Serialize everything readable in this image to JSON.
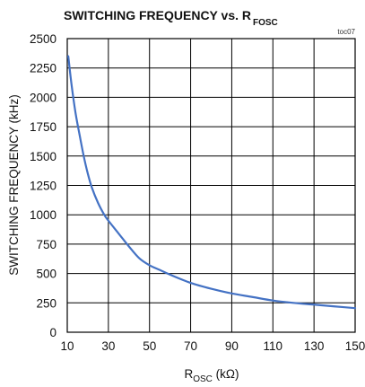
{
  "chart_data": {
    "type": "line",
    "title": {
      "main": "SWITCHING FREQUENCY vs. R",
      "sub": "FOSC"
    },
    "annotation": "toc07",
    "xlabel": {
      "main": "R",
      "sub": "OSC",
      "unit": " (kΩ)"
    },
    "ylabel": "SWITCHING FREQUENCY (kHz)",
    "xlim": [
      10,
      150
    ],
    "ylim": [
      0,
      2500
    ],
    "x_ticks": [
      "10",
      "30",
      "50",
      "70",
      "90",
      "110",
      "130",
      "150"
    ],
    "y_ticks": [
      "0",
      "250",
      "500",
      "750",
      "1000",
      "1250",
      "1500",
      "1750",
      "2000",
      "2250",
      "2500"
    ],
    "x_tick_values": [
      10,
      30,
      50,
      70,
      90,
      110,
      130,
      150
    ],
    "y_tick_values": [
      0,
      250,
      500,
      750,
      1000,
      1250,
      1500,
      1750,
      2000,
      2250,
      2500
    ],
    "grid": true,
    "line_color": "#4472c4",
    "series": [
      {
        "x": [
          10.5,
          12,
          14,
          16,
          18,
          20,
          22,
          25,
          28,
          30,
          35,
          40,
          45,
          50,
          55,
          60,
          70,
          80,
          90,
          100,
          110,
          120,
          130,
          140,
          150
        ],
        "values": [
          2350,
          2120,
          1870,
          1680,
          1500,
          1350,
          1230,
          1100,
          1000,
          950,
          840,
          730,
          630,
          570,
          530,
          490,
          420,
          370,
          330,
          300,
          270,
          250,
          235,
          220,
          205
        ]
      }
    ]
  }
}
